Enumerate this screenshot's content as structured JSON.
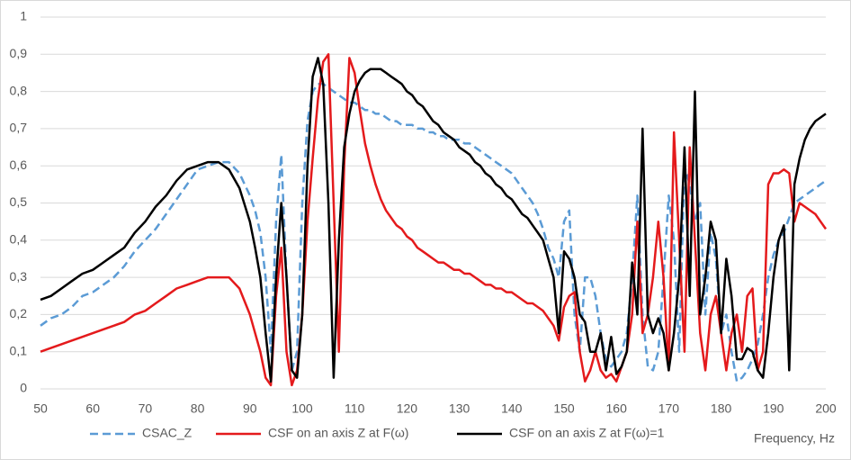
{
  "chart_data": {
    "type": "line",
    "x": [
      50,
      52,
      54,
      56,
      58,
      60,
      62,
      64,
      66,
      68,
      70,
      72,
      74,
      76,
      78,
      80,
      82,
      84,
      86,
      88,
      90,
      91,
      92,
      93,
      94,
      95,
      96,
      97,
      98,
      99,
      100,
      101,
      102,
      103,
      104,
      105,
      106,
      107,
      108,
      109,
      110,
      111,
      112,
      113,
      114,
      115,
      116,
      117,
      118,
      119,
      120,
      121,
      122,
      123,
      124,
      125,
      126,
      127,
      128,
      129,
      130,
      131,
      132,
      133,
      134,
      135,
      136,
      137,
      138,
      139,
      140,
      141,
      142,
      143,
      144,
      145,
      146,
      147,
      148,
      149,
      150,
      151,
      152,
      153,
      154,
      155,
      156,
      157,
      158,
      159,
      160,
      161,
      162,
      163,
      164,
      165,
      166,
      167,
      168,
      169,
      170,
      171,
      172,
      173,
      174,
      175,
      176,
      177,
      178,
      179,
      180,
      181,
      182,
      183,
      184,
      185,
      186,
      187,
      188,
      189,
      190,
      191,
      192,
      193,
      194,
      195,
      196,
      197,
      198,
      199,
      200
    ],
    "series": [
      {
        "name": "CSAC_Z",
        "color": "#5b9bd5",
        "style": "dashed",
        "values": [
          0.17,
          0.19,
          0.2,
          0.22,
          0.25,
          0.26,
          0.28,
          0.3,
          0.33,
          0.37,
          0.4,
          0.43,
          0.47,
          0.51,
          0.55,
          0.59,
          0.6,
          0.61,
          0.61,
          0.58,
          0.52,
          0.48,
          0.42,
          0.3,
          0.1,
          0.45,
          0.63,
          0.3,
          0.05,
          0.1,
          0.5,
          0.72,
          0.8,
          0.82,
          0.82,
          0.81,
          0.8,
          0.79,
          0.78,
          0.77,
          0.77,
          0.76,
          0.75,
          0.75,
          0.74,
          0.74,
          0.73,
          0.72,
          0.72,
          0.71,
          0.71,
          0.71,
          0.7,
          0.7,
          0.69,
          0.69,
          0.68,
          0.68,
          0.67,
          0.67,
          0.67,
          0.66,
          0.66,
          0.65,
          0.64,
          0.63,
          0.62,
          0.61,
          0.6,
          0.59,
          0.58,
          0.56,
          0.54,
          0.52,
          0.5,
          0.47,
          0.43,
          0.38,
          0.35,
          0.3,
          0.45,
          0.48,
          0.2,
          0.1,
          0.3,
          0.3,
          0.25,
          0.15,
          0.08,
          0.06,
          0.08,
          0.1,
          0.15,
          0.3,
          0.52,
          0.2,
          0.06,
          0.05,
          0.1,
          0.3,
          0.52,
          0.4,
          0.1,
          0.6,
          0.55,
          0.45,
          0.5,
          0.2,
          0.42,
          0.35,
          0.15,
          0.2,
          0.1,
          0.02,
          0.03,
          0.05,
          0.08,
          0.12,
          0.2,
          0.3,
          0.36,
          0.4,
          0.42,
          0.46,
          0.5,
          0.51,
          0.52,
          0.53,
          0.54,
          0.55,
          0.56
        ]
      },
      {
        "name": "CSF on an axis Z at F(ω)",
        "color": "#e41a1c",
        "style": "solid",
        "values": [
          0.1,
          0.11,
          0.12,
          0.13,
          0.14,
          0.15,
          0.16,
          0.17,
          0.18,
          0.2,
          0.21,
          0.23,
          0.25,
          0.27,
          0.28,
          0.29,
          0.3,
          0.3,
          0.3,
          0.27,
          0.2,
          0.15,
          0.1,
          0.03,
          0.01,
          0.25,
          0.38,
          0.1,
          0.01,
          0.05,
          0.2,
          0.45,
          0.62,
          0.78,
          0.88,
          0.9,
          0.5,
          0.1,
          0.6,
          0.89,
          0.85,
          0.75,
          0.66,
          0.6,
          0.55,
          0.51,
          0.48,
          0.46,
          0.44,
          0.43,
          0.41,
          0.4,
          0.38,
          0.37,
          0.36,
          0.35,
          0.34,
          0.34,
          0.33,
          0.32,
          0.32,
          0.31,
          0.31,
          0.3,
          0.29,
          0.28,
          0.28,
          0.27,
          0.27,
          0.26,
          0.26,
          0.25,
          0.24,
          0.23,
          0.23,
          0.22,
          0.21,
          0.19,
          0.17,
          0.13,
          0.22,
          0.25,
          0.26,
          0.1,
          0.02,
          0.05,
          0.1,
          0.05,
          0.03,
          0.04,
          0.02,
          0.06,
          0.1,
          0.2,
          0.45,
          0.15,
          0.2,
          0.3,
          0.45,
          0.3,
          0.05,
          0.69,
          0.4,
          0.1,
          0.65,
          0.4,
          0.15,
          0.05,
          0.2,
          0.25,
          0.15,
          0.05,
          0.15,
          0.2,
          0.1,
          0.25,
          0.27,
          0.05,
          0.1,
          0.55,
          0.58,
          0.58,
          0.59,
          0.58,
          0.45,
          0.5,
          0.49,
          0.48,
          0.47,
          0.45,
          0.43
        ]
      },
      {
        "name": "CSF on an axis Z at F(ω)=1",
        "color": "#000000",
        "style": "solid",
        "values": [
          0.24,
          0.25,
          0.27,
          0.29,
          0.31,
          0.32,
          0.34,
          0.36,
          0.38,
          0.42,
          0.45,
          0.49,
          0.52,
          0.56,
          0.59,
          0.6,
          0.61,
          0.61,
          0.59,
          0.54,
          0.45,
          0.38,
          0.3,
          0.15,
          0.02,
          0.3,
          0.5,
          0.3,
          0.05,
          0.03,
          0.2,
          0.6,
          0.84,
          0.89,
          0.82,
          0.5,
          0.03,
          0.4,
          0.65,
          0.74,
          0.8,
          0.83,
          0.85,
          0.86,
          0.86,
          0.86,
          0.85,
          0.84,
          0.83,
          0.82,
          0.8,
          0.79,
          0.77,
          0.76,
          0.74,
          0.72,
          0.71,
          0.69,
          0.68,
          0.67,
          0.65,
          0.64,
          0.63,
          0.61,
          0.6,
          0.58,
          0.57,
          0.55,
          0.54,
          0.52,
          0.51,
          0.49,
          0.47,
          0.46,
          0.44,
          0.42,
          0.4,
          0.35,
          0.3,
          0.15,
          0.37,
          0.35,
          0.3,
          0.2,
          0.18,
          0.1,
          0.1,
          0.15,
          0.05,
          0.14,
          0.04,
          0.06,
          0.1,
          0.34,
          0.2,
          0.7,
          0.2,
          0.15,
          0.19,
          0.15,
          0.05,
          0.15,
          0.3,
          0.65,
          0.25,
          0.8,
          0.2,
          0.3,
          0.45,
          0.4,
          0.15,
          0.35,
          0.25,
          0.08,
          0.08,
          0.11,
          0.1,
          0.05,
          0.03,
          0.15,
          0.3,
          0.4,
          0.44,
          0.05,
          0.55,
          0.62,
          0.67,
          0.7,
          0.72,
          0.73,
          0.74
        ]
      }
    ],
    "x_label": "Frequency, Hz",
    "xlim": [
      50,
      200
    ],
    "xticks": [
      50,
      60,
      70,
      80,
      90,
      100,
      110,
      120,
      130,
      140,
      150,
      160,
      170,
      180,
      190,
      200
    ],
    "ylim": [
      0,
      1
    ],
    "yticks": [
      0,
      {
        "value": 0.1,
        "label": "0,1"
      },
      {
        "value": 0.2,
        "label": "0,2"
      },
      {
        "value": 0.3,
        "label": "0,3"
      },
      {
        "value": 0.4,
        "label": "0,4"
      },
      {
        "value": 0.5,
        "label": "0,5"
      },
      {
        "value": 0.6,
        "label": "0,6"
      },
      {
        "value": 0.7,
        "label": "0,7"
      },
      {
        "value": 0.8,
        "label": "0,8"
      },
      {
        "value": 0.9,
        "label": "0,9"
      },
      1
    ],
    "grid": true,
    "legend": "bottom"
  }
}
